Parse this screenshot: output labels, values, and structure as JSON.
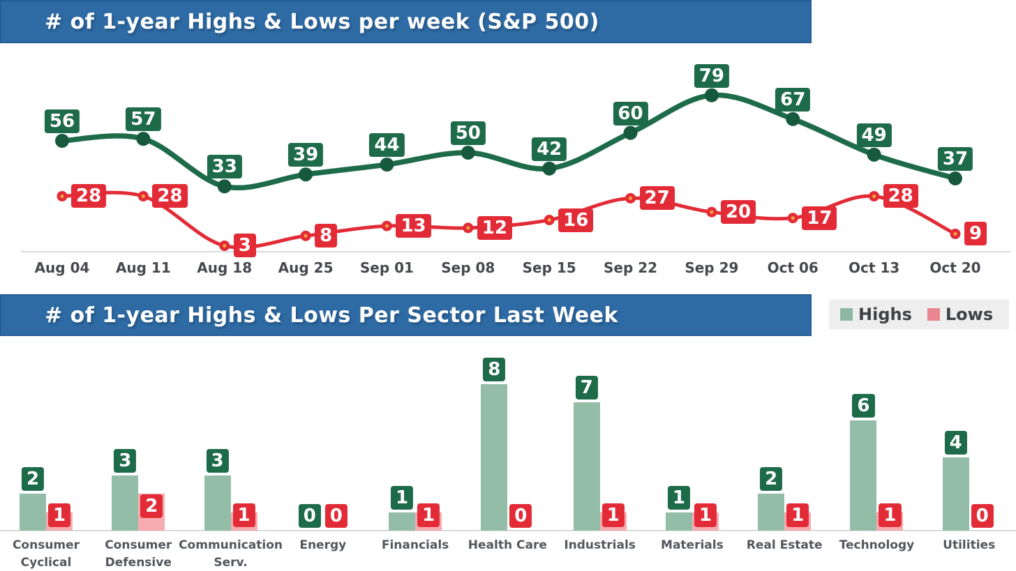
{
  "colors": {
    "header_bg": "#2e6ba4",
    "header_border": "#255e96",
    "highs": "#1e6b4a",
    "highs_dot": "#17593d",
    "lows": "#e22b36",
    "lows_dot_center": "#f0a33c",
    "highs_bar": "#93bda6",
    "lows_bar": "#f6abb0",
    "legend_bg": "#eeeeee",
    "legend_highs_swatch": "#8cb7a0",
    "legend_lows_swatch": "#e9868f",
    "axis_line": "#d9d9d9",
    "tick_text": "#46484d",
    "sector_text": "#53565c",
    "legend_text": "#3f4145"
  },
  "header1": {
    "title": "# of 1-year Highs & Lows per week (S&P 500)"
  },
  "header2": {
    "title": "# of 1-year Highs & Lows Per Sector Last Week"
  },
  "legend": {
    "highs_label": "Highs",
    "lows_label": "Lows"
  },
  "chart_data": [
    {
      "type": "line",
      "title": "# of 1-year Highs & Lows per week (S&P 500)",
      "x": [
        "Aug 04",
        "Aug 11",
        "Aug 18",
        "Aug 25",
        "Sep 01",
        "Sep 08",
        "Sep 15",
        "Sep 22",
        "Sep 29",
        "Oct 06",
        "Oct 13",
        "Oct 20"
      ],
      "series": [
        {
          "name": "Highs",
          "color": "#1e6b4a",
          "values": [
            56,
            57,
            33,
            39,
            44,
            50,
            42,
            60,
            79,
            67,
            49,
            37
          ]
        },
        {
          "name": "Lows",
          "color": "#e22b36",
          "values": [
            28,
            28,
            3,
            8,
            13,
            12,
            16,
            27,
            20,
            17,
            28,
            9
          ]
        }
      ],
      "ylim": [
        0,
        100
      ],
      "grid": false,
      "legend": false,
      "data_labels": true
    },
    {
      "type": "bar",
      "title": "# of 1-year Highs & Lows Per Sector Last Week",
      "categories": [
        "Consumer Cyclical",
        "Consumer Defensive",
        "Communication Serv.",
        "Energy",
        "Financials",
        "Health Care",
        "Industrials",
        "Materials",
        "Real Estate",
        "Technology",
        "Utilities"
      ],
      "series": [
        {
          "name": "Highs",
          "color": "#93bda6",
          "values": [
            2,
            3,
            3,
            0,
            1,
            8,
            7,
            1,
            2,
            6,
            4
          ]
        },
        {
          "name": "Lows",
          "color": "#f6abb0",
          "values": [
            1,
            2,
            1,
            0,
            1,
            0,
            1,
            1,
            1,
            1,
            0
          ]
        }
      ],
      "ylim": [
        0,
        8
      ],
      "grid": false,
      "legend": [
        "Highs",
        "Lows"
      ],
      "legend_position": "top-right",
      "data_labels": true
    }
  ]
}
